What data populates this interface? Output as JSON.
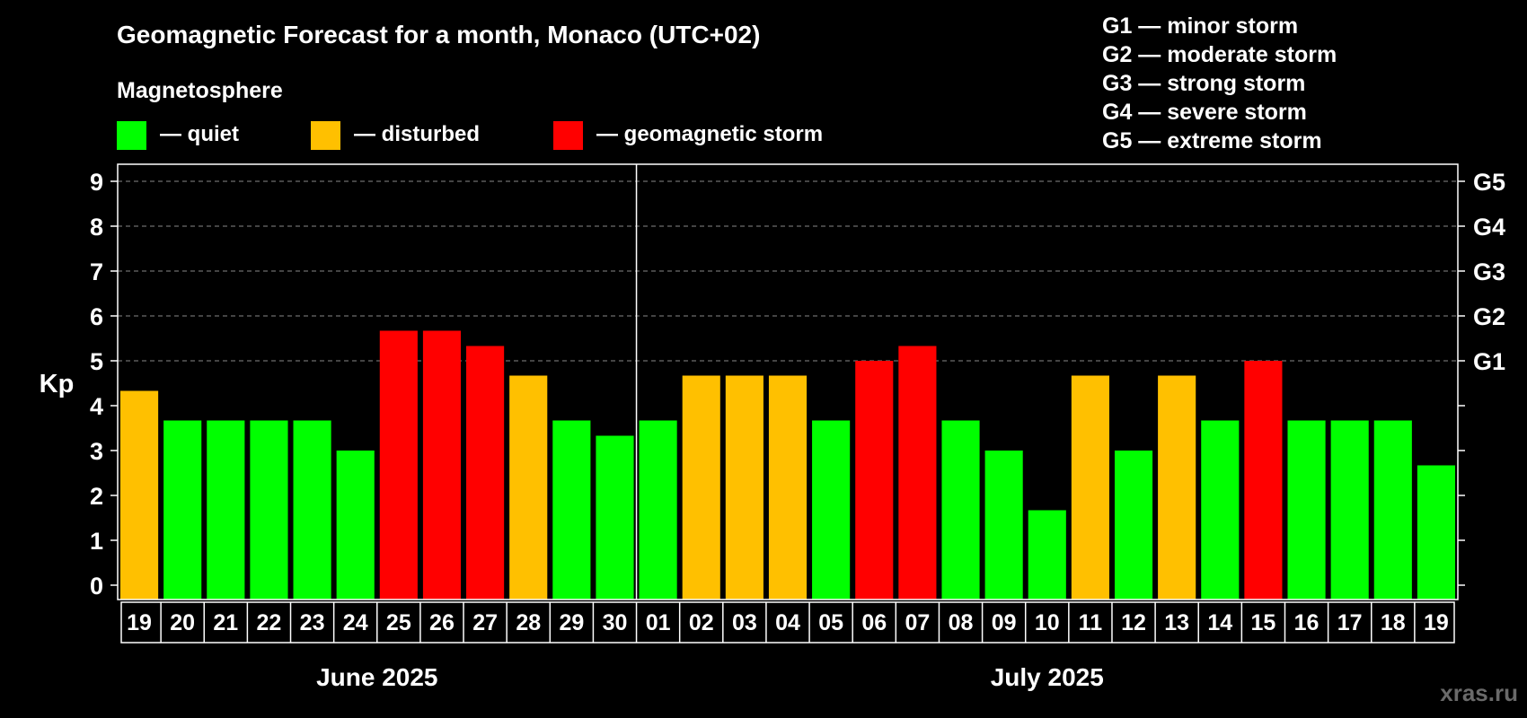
{
  "header": {
    "title": "Geomagnetic Forecast for a month, Monaco (UTC+02)",
    "subtitle": "Magnetosphere"
  },
  "legend": [
    {
      "label": "— quiet",
      "color": "#00ff00"
    },
    {
      "label": "— disturbed",
      "color": "#ffc000"
    },
    {
      "label": "— geomagnetic storm",
      "color": "#ff0000"
    }
  ],
  "storm_scale": [
    "G1 — minor storm",
    "G2 — moderate storm",
    "G3 — strong storm",
    "G4 — severe storm",
    "G5 — extreme storm"
  ],
  "watermark": "xras.ru",
  "colors": {
    "quiet": "#00ff00",
    "disturbed": "#ffc000",
    "storm": "#ff0000",
    "background": "#000000",
    "axis": "#ffffff",
    "grid": "#888888"
  },
  "chart_data": {
    "type": "bar",
    "ylabel": "Kp",
    "ylim": [
      0,
      9
    ],
    "yticks": [
      0,
      1,
      2,
      3,
      4,
      5,
      6,
      7,
      8,
      9
    ],
    "right_ticks": [
      {
        "kp": 5,
        "label": "G1"
      },
      {
        "kp": 6,
        "label": "G2"
      },
      {
        "kp": 7,
        "label": "G3"
      },
      {
        "kp": 8,
        "label": "G4"
      },
      {
        "kp": 9,
        "label": "G5"
      }
    ],
    "grid": "dashed horizontal at Kp 5–9",
    "categories": [
      "19",
      "20",
      "21",
      "22",
      "23",
      "24",
      "25",
      "26",
      "27",
      "28",
      "29",
      "30",
      "01",
      "02",
      "03",
      "04",
      "05",
      "06",
      "07",
      "08",
      "09",
      "10",
      "11",
      "12",
      "13",
      "14",
      "15",
      "16",
      "17",
      "18",
      "19"
    ],
    "values": [
      4.33,
      3.67,
      3.67,
      3.67,
      3.67,
      3.0,
      5.67,
      5.67,
      5.33,
      4.67,
      3.67,
      3.33,
      3.67,
      4.67,
      4.67,
      4.67,
      3.67,
      5.0,
      5.33,
      3.67,
      3.0,
      1.67,
      4.67,
      3.0,
      4.67,
      3.67,
      5.0,
      3.67,
      3.67,
      3.67,
      2.67
    ],
    "status": [
      "disturbed",
      "quiet",
      "quiet",
      "quiet",
      "quiet",
      "quiet",
      "storm",
      "storm",
      "storm",
      "disturbed",
      "quiet",
      "quiet",
      "quiet",
      "disturbed",
      "disturbed",
      "disturbed",
      "quiet",
      "storm",
      "storm",
      "quiet",
      "quiet",
      "quiet",
      "disturbed",
      "quiet",
      "disturbed",
      "quiet",
      "storm",
      "quiet",
      "quiet",
      "quiet",
      "quiet"
    ],
    "months": [
      {
        "label": "June 2025",
        "start": 0,
        "end": 11
      },
      {
        "label": "July 2025",
        "start": 12,
        "end": 30
      }
    ]
  }
}
